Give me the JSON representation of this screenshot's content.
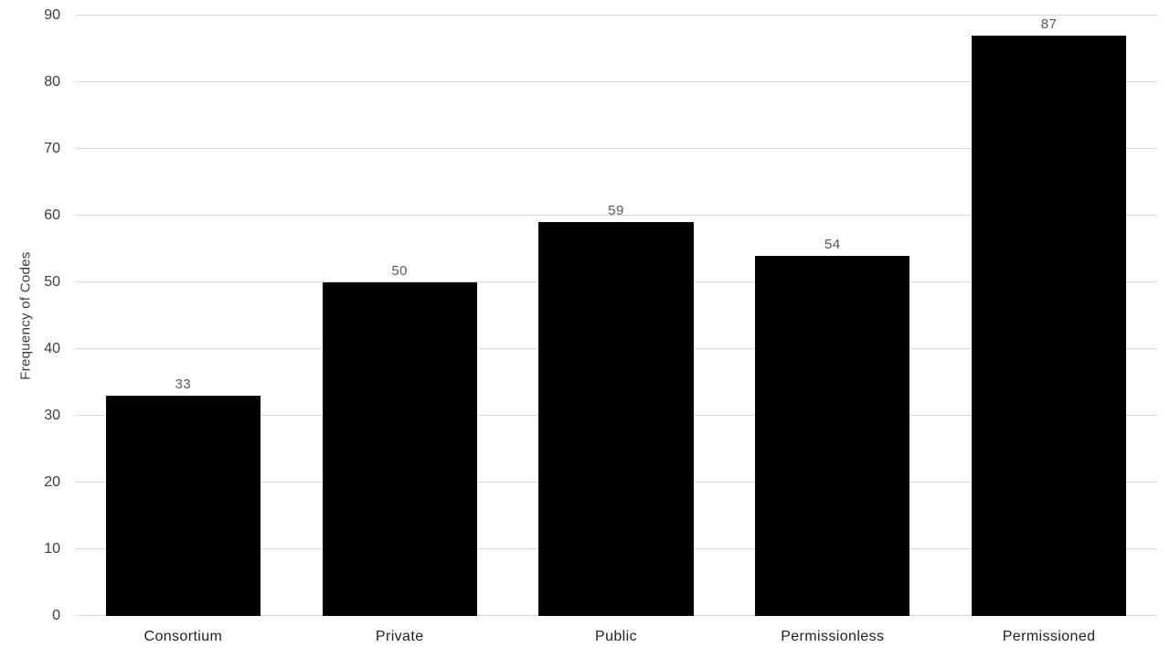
{
  "chart_data": {
    "type": "bar",
    "categories": [
      "Consortium",
      "Private",
      "Public",
      "Permissionless",
      "Permissioned"
    ],
    "values": [
      33,
      50,
      59,
      54,
      87
    ],
    "title": "",
    "xlabel": "",
    "ylabel": "Frequency of Codes",
    "ylim": [
      0,
      90
    ],
    "yticks": [
      0,
      10,
      20,
      30,
      40,
      50,
      60,
      70,
      80,
      90
    ],
    "grid": true,
    "legend": "none",
    "bar_color": "#000000",
    "data_label_color": "#595959",
    "gridline_color": "#d9d9d9",
    "tick_label_color": "#3b3b3b",
    "category_label_color": "#1f1f1f",
    "background_color": "#ffffff"
  }
}
